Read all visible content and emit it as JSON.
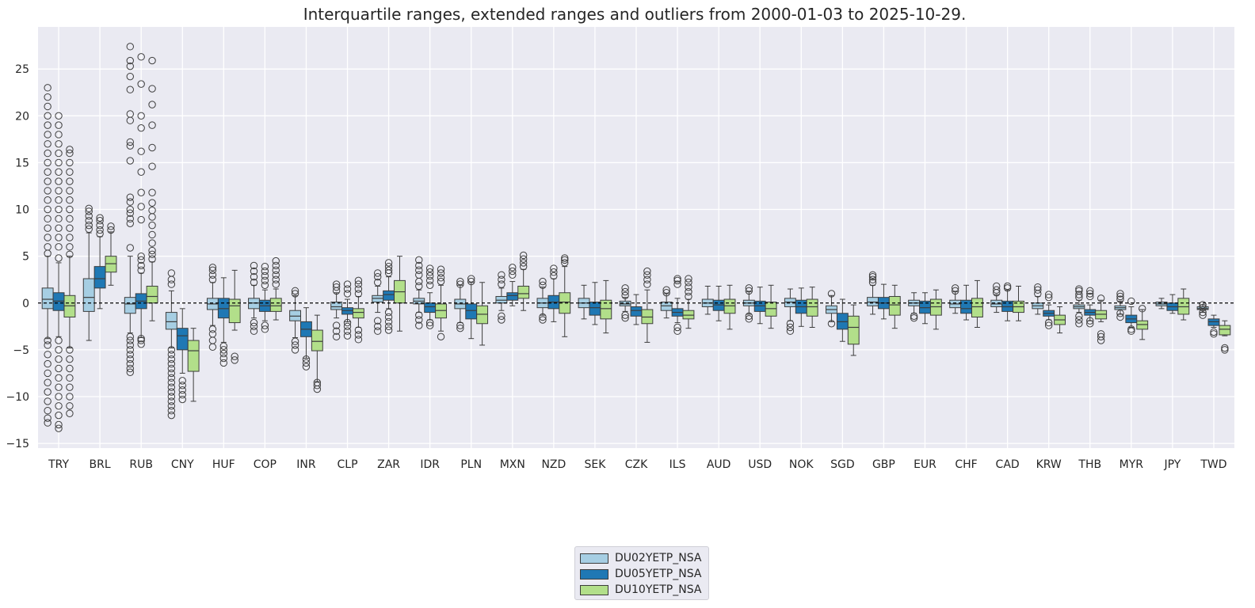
{
  "chart_data": {
    "type": "boxplot",
    "title": "Interquartile ranges, extended ranges and outliers from 2000-01-03 to 2025-10-29.",
    "xlabel": "",
    "ylabel": "",
    "ylim": [
      -15.5,
      29.5
    ],
    "yticks": [
      -15,
      -10,
      -5,
      0,
      5,
      10,
      15,
      20,
      25
    ],
    "ytick_labels": [
      "−15",
      "−10",
      "−5",
      "0",
      "5",
      "10",
      "15",
      "20",
      "25"
    ],
    "reference_line": 0,
    "categories": [
      "TRY",
      "BRL",
      "RUB",
      "CNY",
      "HUF",
      "COP",
      "INR",
      "CLP",
      "ZAR",
      "IDR",
      "PLN",
      "MXN",
      "NZD",
      "SEK",
      "CZK",
      "ILS",
      "AUD",
      "USD",
      "NOK",
      "SGD",
      "GBP",
      "EUR",
      "CHF",
      "CAD",
      "KRW",
      "THB",
      "MYR",
      "JPY",
      "TWD"
    ],
    "series": [
      {
        "name": "DU02YETP_NSA",
        "color": "#a6cee3",
        "boxes": [
          [
            -3.8,
            -0.6,
            0.4,
            1.6,
            5.0
          ],
          [
            -4.0,
            -0.9,
            0.6,
            2.6,
            7.5
          ],
          [
            -3.2,
            -1.1,
            -0.1,
            0.6,
            5.0
          ],
          [
            -4.8,
            -2.8,
            -2.0,
            -1.0,
            1.3
          ],
          [
            -2.4,
            -0.7,
            -0.1,
            0.5,
            2.2
          ],
          [
            -1.6,
            -0.6,
            0.0,
            0.5,
            1.9
          ],
          [
            -3.7,
            -1.9,
            -1.4,
            -0.8,
            0.8
          ],
          [
            -1.6,
            -0.7,
            -0.4,
            0.1,
            1.1
          ],
          [
            -1.0,
            0.1,
            0.5,
            0.8,
            1.8
          ],
          [
            -1.0,
            -0.1,
            0.2,
            0.5,
            1.4
          ],
          [
            -2.1,
            -0.6,
            -0.1,
            0.4,
            1.9
          ],
          [
            -0.8,
            0.0,
            0.3,
            0.7,
            1.6
          ],
          [
            -1.3,
            -0.5,
            0.0,
            0.5,
            1.7
          ],
          [
            -1.7,
            -0.5,
            0.0,
            0.5,
            1.9
          ],
          [
            -0.9,
            -0.3,
            -0.1,
            0.2,
            0.6
          ],
          [
            -1.6,
            -0.8,
            -0.3,
            0.1,
            1.0
          ],
          [
            -1.2,
            -0.4,
            0.0,
            0.4,
            1.8
          ],
          [
            -1.2,
            -0.3,
            0.0,
            0.3,
            1.2
          ],
          [
            -1.9,
            -0.4,
            0.1,
            0.5,
            1.5
          ],
          [
            -2.0,
            -1.1,
            -0.7,
            -0.3,
            0.8
          ],
          [
            -1.2,
            -0.3,
            0.1,
            0.6,
            1.9
          ],
          [
            -1.1,
            -0.3,
            0.0,
            0.3,
            1.1
          ],
          [
            -1.1,
            -0.5,
            -0.1,
            0.3,
            1.2
          ],
          [
            -1.0,
            -0.4,
            -0.1,
            0.3,
            0.9
          ],
          [
            -1.2,
            -0.6,
            -0.3,
            0.0,
            0.7
          ],
          [
            -1.0,
            -0.6,
            -0.4,
            -0.2,
            0.3
          ],
          [
            -1.2,
            -0.7,
            -0.5,
            -0.3,
            0.2
          ],
          [
            -0.6,
            -0.3,
            -0.1,
            0.1,
            0.5
          ],
          [
            -1.0,
            -0.7,
            -0.6,
            -0.4,
            -0.2
          ]
        ],
        "outliers": [
          [
            -12.8,
            -12.3,
            -11.5,
            -10.5,
            -9.5,
            -8.5,
            -7.5,
            -6.5,
            -5.5,
            -4.5,
            -4.0,
            5.3,
            6.0,
            7.0,
            8.0,
            9.0,
            10.0,
            11.0,
            12.0,
            13.0,
            14.0,
            15.0,
            16.0,
            17.0,
            18.0,
            19.0,
            20.0,
            21.0,
            22.0,
            23.0
          ],
          [
            7.9,
            8.3,
            8.8,
            9.3,
            9.8,
            10.1
          ],
          [
            -7.4,
            -7.0,
            -6.5,
            -6.0,
            -5.5,
            -5.0,
            -4.5,
            -4.0,
            -3.6,
            5.9,
            8.5,
            9.0,
            9.6,
            10.0,
            10.8,
            11.3,
            15.2,
            16.8,
            17.2,
            19.5,
            20.2,
            22.8,
            24.2,
            25.3,
            25.9,
            27.4
          ],
          [
            -12.0,
            -11.5,
            -11.0,
            -10.5,
            -10.0,
            -9.5,
            -9.0,
            -8.5,
            -8.0,
            -7.5,
            -7.0,
            -6.5,
            -6.0,
            -5.5,
            -5.0,
            2.0,
            2.5,
            3.2
          ],
          [
            -4.7,
            -4.0,
            -3.3,
            -2.8,
            2.5,
            3.0,
            3.5,
            3.8
          ],
          [
            -3.0,
            -2.5,
            -2.1,
            2.2,
            2.8,
            3.4,
            4.0
          ],
          [
            -5.0,
            -4.5,
            -4.1,
            1.0,
            1.3
          ],
          [
            -3.6,
            -3.0,
            -2.4,
            1.3,
            1.7,
            2.0
          ],
          [
            -3.0,
            -2.5,
            -1.9,
            2.2,
            2.8,
            3.2
          ],
          [
            -2.4,
            -1.8,
            -1.3,
            1.8,
            2.3,
            3.0,
            3.5,
            4.0,
            4.6
          ],
          [
            -2.7,
            -2.4,
            2.0,
            2.3
          ],
          [
            -1.8,
            -1.4,
            2.0,
            2.5,
            3.0
          ],
          [
            -1.8,
            -1.5,
            1.9,
            2.3
          ],
          [],
          [
            -1.6,
            -1.3,
            0.8,
            1.2,
            1.6
          ],
          [
            1.1,
            1.4
          ],
          [],
          [
            -1.7,
            -1.4,
            1.3,
            1.6
          ],
          [
            -3.0,
            -2.6,
            -2.2
          ],
          [
            -2.2,
            1.0
          ],
          [
            2.2,
            2.5,
            2.8,
            3.0
          ],
          [
            -1.6,
            -1.4
          ],
          [
            1.3,
            1.6
          ],
          [
            1.1,
            1.4,
            1.8
          ],
          [
            1.0,
            1.4,
            1.7
          ],
          [
            -2.2,
            -1.8,
            -1.4,
            0.6,
            0.9,
            1.3,
            1.5
          ],
          [
            -1.5,
            -1.1,
            0.4,
            0.7,
            1.0
          ],
          [],
          [
            -1.3,
            -1.0,
            -0.5,
            -0.2
          ]
        ]
      },
      {
        "name": "DU05YETP_NSA",
        "color": "#1f78b4",
        "boxes": [
          [
            -3.6,
            -0.8,
            0.2,
            1.1,
            4.3
          ],
          [
            -0.6,
            1.6,
            2.6,
            3.9,
            7.1
          ],
          [
            -3.7,
            -0.6,
            0.2,
            1.0,
            3.2
          ],
          [
            -7.5,
            -5.0,
            -3.5,
            -2.7,
            -0.6
          ],
          [
            -4.2,
            -1.6,
            -0.6,
            0.5,
            2.7
          ],
          [
            -1.9,
            -0.9,
            -0.3,
            0.3,
            1.4
          ],
          [
            -5.9,
            -3.6,
            -2.8,
            -2.0,
            -0.5
          ],
          [
            -2.0,
            -1.2,
            -0.8,
            -0.5,
            0.4
          ],
          [
            -0.6,
            0.3,
            0.9,
            1.3,
            2.8
          ],
          [
            -1.8,
            -1.0,
            -0.4,
            0.0,
            1.1
          ],
          [
            -3.8,
            -1.7,
            -0.8,
            -0.1,
            2.2
          ],
          [
            -0.3,
            0.3,
            0.8,
            1.1,
            2.3
          ],
          [
            -2.0,
            -0.6,
            0.1,
            0.8,
            2.6
          ],
          [
            -2.3,
            -1.3,
            -0.5,
            0.1,
            2.2
          ],
          [
            -2.3,
            -1.4,
            -0.8,
            -0.4,
            0.9
          ],
          [
            -2.1,
            -1.4,
            -1.0,
            -0.6,
            0.5
          ],
          [
            -1.9,
            -0.8,
            -0.2,
            0.3,
            1.8
          ],
          [
            -2.2,
            -0.9,
            -0.3,
            0.2,
            1.7
          ],
          [
            -2.5,
            -1.1,
            -0.4,
            0.3,
            1.6
          ],
          [
            -4.1,
            -2.8,
            -2.0,
            -1.1,
            0.4
          ],
          [
            -1.7,
            -0.6,
            0.0,
            0.6,
            2.0
          ],
          [
            -2.2,
            -1.1,
            -0.5,
            0.2,
            1.1
          ],
          [
            -1.8,
            -1.1,
            -0.6,
            0.3,
            1.9
          ],
          [
            -1.9,
            -0.9,
            -0.4,
            0.2,
            1.4
          ],
          [
            -1.8,
            -1.4,
            -1.1,
            -0.8,
            -0.2
          ],
          [
            -1.9,
            -1.3,
            -1.0,
            -0.7,
            -0.2
          ],
          [
            -2.6,
            -2.1,
            -1.7,
            -1.3,
            -0.4
          ],
          [
            -1.1,
            -0.8,
            -0.4,
            0.0,
            0.9
          ],
          [
            -2.6,
            -2.4,
            -2.0,
            -1.7,
            -1.3
          ]
        ],
        "outliers": [
          [
            -13.4,
            -13.0,
            -12.0,
            -11.0,
            -10.0,
            -9.0,
            -8.0,
            -7.0,
            -6.0,
            -5.0,
            -4.0,
            4.8,
            6.0,
            7.0,
            8.0,
            9.0,
            10.0,
            11.0,
            12.0,
            13.0,
            14.0,
            15.0,
            16.0,
            17.0,
            18.0,
            19.0,
            20.0
          ],
          [
            7.4,
            7.8,
            8.3,
            8.8,
            9.1
          ],
          [
            -4.4,
            -4.0,
            -3.8,
            3.5,
            4.0,
            4.6,
            5.0,
            8.9,
            10.3,
            11.8,
            14.0,
            16.2,
            18.7,
            20.0,
            23.4,
            26.3
          ],
          [
            -10.3,
            -9.8,
            -9.3,
            -8.8,
            -8.3
          ],
          [
            -6.4,
            -5.9,
            -5.4,
            -5.0,
            -4.6
          ],
          [
            -2.8,
            -2.4,
            1.9,
            2.4,
            2.9,
            3.4,
            3.9
          ],
          [
            -6.8,
            -6.4,
            -6.0
          ],
          [
            -3.5,
            -3.0,
            -2.5,
            -2.1,
            1.0,
            1.5,
            2.0
          ],
          [
            -2.9,
            -2.5,
            -2.0,
            -1.5,
            -1.0,
            3.2,
            3.5,
            3.9,
            4.3
          ],
          [
            -2.4,
            -2.1,
            1.9,
            2.4,
            2.9,
            3.3,
            3.7
          ],
          [
            2.3,
            2.6
          ],
          [
            3.0,
            3.4,
            3.8
          ],
          [
            2.9,
            3.3,
            3.7
          ],
          [],
          [],
          [
            -3.0,
            -2.6,
            2.0,
            2.4,
            2.6
          ],
          [],
          [],
          [],
          [],
          [],
          [],
          [],
          [
            1.6,
            1.8
          ],
          [
            -2.4,
            -2.1,
            0.6,
            0.9
          ],
          [
            -2.2,
            -1.9,
            0.7,
            1.0,
            1.3
          ],
          [
            -3.0,
            -2.8,
            0.2
          ],
          [],
          [
            -3.3,
            -3.1
          ]
        ]
      },
      {
        "name": "DU10YETP_NSA",
        "color": "#b2df8a",
        "boxes": [
          [
            -4.8,
            -1.5,
            -0.3,
            0.8,
            5.0
          ],
          [
            1.9,
            3.3,
            4.2,
            5.0,
            7.6
          ],
          [
            -1.9,
            0.0,
            0.7,
            1.8,
            4.4
          ],
          [
            -10.5,
            -7.3,
            -5.1,
            -4.0,
            -2.7
          ],
          [
            -2.9,
            -2.1,
            -0.3,
            0.4,
            3.5
          ],
          [
            -1.8,
            -0.9,
            -0.3,
            0.5,
            1.5
          ],
          [
            -8.4,
            -5.1,
            -4.1,
            -2.9,
            -1.3
          ],
          [
            -2.6,
            -1.6,
            -1.0,
            -0.6,
            0.7
          ],
          [
            -3.0,
            0.0,
            1.2,
            2.4,
            5.0
          ],
          [
            -3.0,
            -1.6,
            -0.8,
            -0.1,
            1.9
          ],
          [
            -4.5,
            -2.2,
            -1.2,
            -0.3,
            2.2
          ],
          [
            -0.8,
            0.5,
            1.0,
            1.8,
            3.6
          ],
          [
            -3.6,
            -1.1,
            0.1,
            1.1,
            3.9
          ],
          [
            -3.2,
            -1.7,
            -0.6,
            0.3,
            2.4
          ],
          [
            -4.2,
            -2.2,
            -1.5,
            -0.7,
            1.4
          ],
          [
            -2.7,
            -1.7,
            -1.3,
            -0.8,
            0.4
          ],
          [
            -2.8,
            -1.1,
            -0.3,
            0.4,
            1.9
          ],
          [
            -2.7,
            -1.4,
            -0.6,
            0.1,
            1.9
          ],
          [
            -2.6,
            -1.4,
            -0.4,
            0.4,
            1.7
          ],
          [
            -5.6,
            -4.4,
            -2.6,
            -1.4,
            -0.2
          ],
          [
            -2.7,
            -1.3,
            -0.2,
            0.7,
            1.9
          ],
          [
            -2.8,
            -1.3,
            -0.4,
            0.4,
            1.4
          ],
          [
            -2.6,
            -1.5,
            -0.4,
            0.5,
            2.4
          ],
          [
            -1.9,
            -1.0,
            -0.4,
            0.2,
            1.8
          ],
          [
            -3.2,
            -2.3,
            -1.8,
            -1.3,
            -0.4
          ],
          [
            -2.0,
            -1.7,
            -1.2,
            -0.8,
            0.3
          ],
          [
            -3.9,
            -2.8,
            -2.3,
            -1.9,
            -0.7
          ],
          [
            -1.8,
            -1.2,
            -0.4,
            0.5,
            1.5
          ],
          [
            -3.5,
            -3.4,
            -2.8,
            -2.4,
            -1.9
          ]
        ],
        "outliers": [
          [
            -11.8,
            -11.0,
            -10.0,
            -9.0,
            -8.0,
            -7.0,
            -6.0,
            -5.0,
            5.2,
            6.0,
            7.0,
            8.0,
            9.0,
            10.0,
            11.0,
            12.0,
            13.0,
            14.0,
            15.0,
            16.0,
            16.4
          ],
          [
            7.8,
            8.2
          ],
          [
            4.7,
            5.2,
            5.6,
            6.4,
            7.3,
            8.3,
            9.2,
            9.9,
            10.7,
            11.8,
            14.6,
            16.6,
            19.0,
            21.2,
            22.9,
            25.9
          ],
          [],
          [
            -6.1,
            -5.7
          ],
          [
            2.0,
            2.5,
            3.0,
            3.5,
            4.0,
            4.5
          ],
          [
            -9.2,
            -8.8,
            -8.5
          ],
          [
            -3.9,
            -3.4,
            -2.9,
            1.0,
            1.5,
            2.0,
            2.4
          ],
          [],
          [
            -3.6,
            2.3,
            2.7,
            3.2,
            3.6
          ],
          [],
          [
            3.9,
            4.3,
            4.7,
            5.1
          ],
          [
            4.3,
            4.6,
            4.8
          ],
          [],
          [
            2.0,
            2.5,
            3.0,
            3.4
          ],
          [
            0.7,
            1.2,
            1.7,
            2.2,
            2.6
          ],
          [],
          [],
          [],
          [],
          [],
          [],
          [],
          [],
          [],
          [
            -4.0,
            -3.6,
            -3.3,
            0.5
          ],
          [
            -0.6
          ],
          [],
          [
            -5.0,
            -4.8
          ]
        ]
      }
    ]
  },
  "legend": {
    "items": [
      {
        "label": "DU02YETP_NSA",
        "color": "#a6cee3"
      },
      {
        "label": "DU05YETP_NSA",
        "color": "#1f78b4"
      },
      {
        "label": "DU10YETP_NSA",
        "color": "#b2df8a"
      }
    ]
  }
}
